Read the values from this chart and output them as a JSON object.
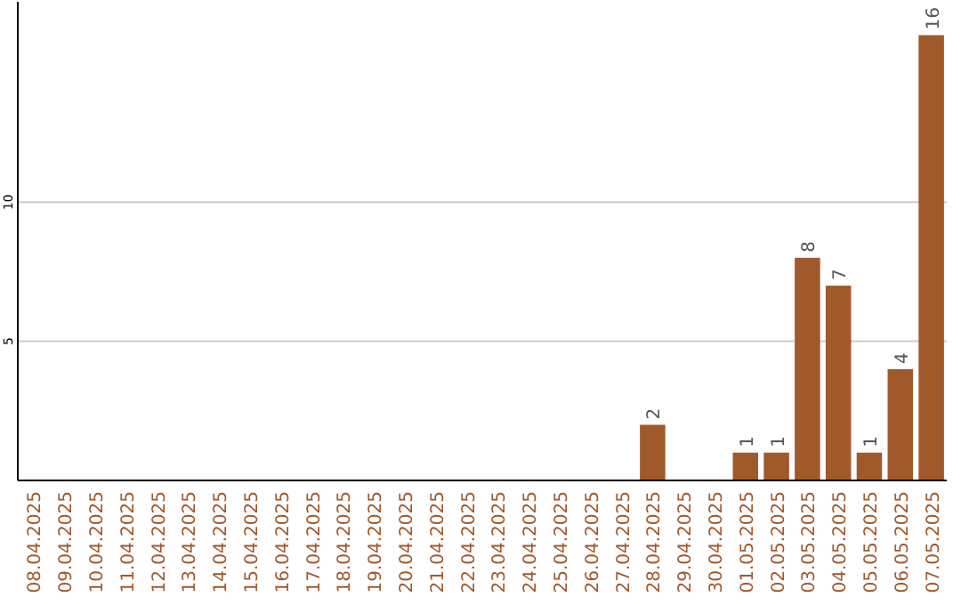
{
  "chart_data": {
    "type": "bar",
    "categories": [
      "08.04.2025",
      "09.04.2025",
      "10.04.2025",
      "11.04.2025",
      "12.04.2025",
      "13.04.2025",
      "14.04.2025",
      "15.04.2025",
      "16.04.2025",
      "17.04.2025",
      "18.04.2025",
      "19.04.2025",
      "20.04.2025",
      "21.04.2025",
      "22.04.2025",
      "23.04.2025",
      "24.04.2025",
      "25.04.2025",
      "26.04.2025",
      "27.04.2025",
      "28.04.2025",
      "29.04.2025",
      "30.04.2025",
      "01.05.2025",
      "02.05.2025",
      "03.05.2025",
      "04.05.2025",
      "05.05.2025",
      "06.05.2025",
      "07.05.2025"
    ],
    "values": [
      0,
      0,
      0,
      0,
      0,
      0,
      0,
      0,
      0,
      0,
      0,
      0,
      0,
      0,
      0,
      0,
      0,
      0,
      0,
      0,
      2,
      0,
      0,
      1,
      1,
      8,
      7,
      1,
      4,
      16
    ],
    "value_labels": [
      null,
      null,
      null,
      null,
      null,
      null,
      null,
      null,
      null,
      null,
      null,
      null,
      null,
      null,
      null,
      null,
      null,
      null,
      null,
      null,
      "2",
      null,
      null,
      "1",
      "1",
      "8",
      "7",
      "1",
      "4",
      "16"
    ],
    "color": "#a0592b",
    "ylim": [
      0,
      17.2
    ],
    "yticks": [
      5,
      10
    ],
    "grid": "y"
  }
}
